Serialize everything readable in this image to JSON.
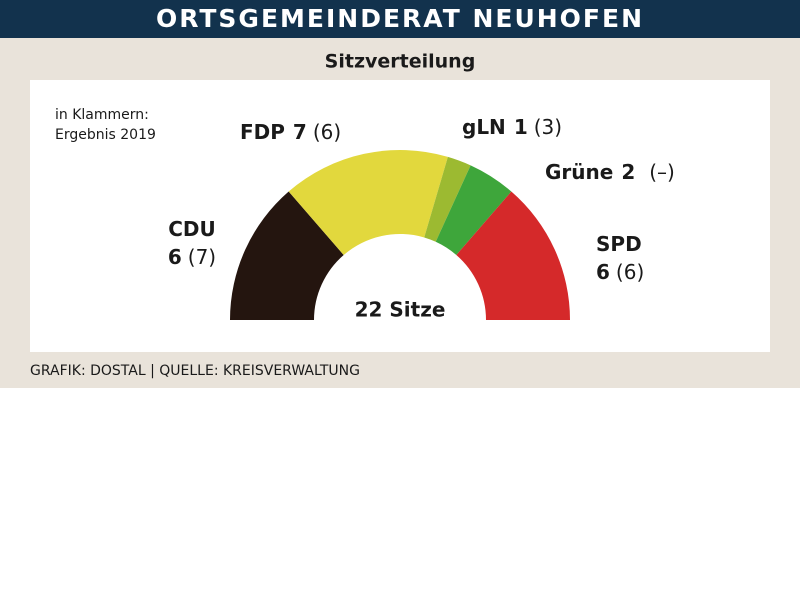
{
  "header": {
    "title": "ORTSGEMEINDERAT NEUHOFEN"
  },
  "chart_data": {
    "type": "half-donut",
    "title": "Sitzverteilung",
    "annotation": [
      "in Klammern:",
      "Ergebnis 2019"
    ],
    "categories": [
      "CDU",
      "FDP",
      "gLN",
      "Grüne",
      "SPD"
    ],
    "values": [
      6,
      7,
      1,
      2,
      6
    ],
    "colors": [
      "#24150f",
      "#e2d83d",
      "#9cba31",
      "#3ea63b",
      "#d5292a"
    ],
    "previous": {
      "values": [
        7,
        6,
        3,
        null,
        6
      ],
      "value_labels": [
        "(7)",
        "(6)",
        "(3)",
        "(–)",
        "(6)"
      ]
    },
    "center_label": "22 Sitze"
  },
  "footer": {
    "source": "GRAFIK: DOSTAL | QUELLE: KREISVERWALTUNG"
  }
}
